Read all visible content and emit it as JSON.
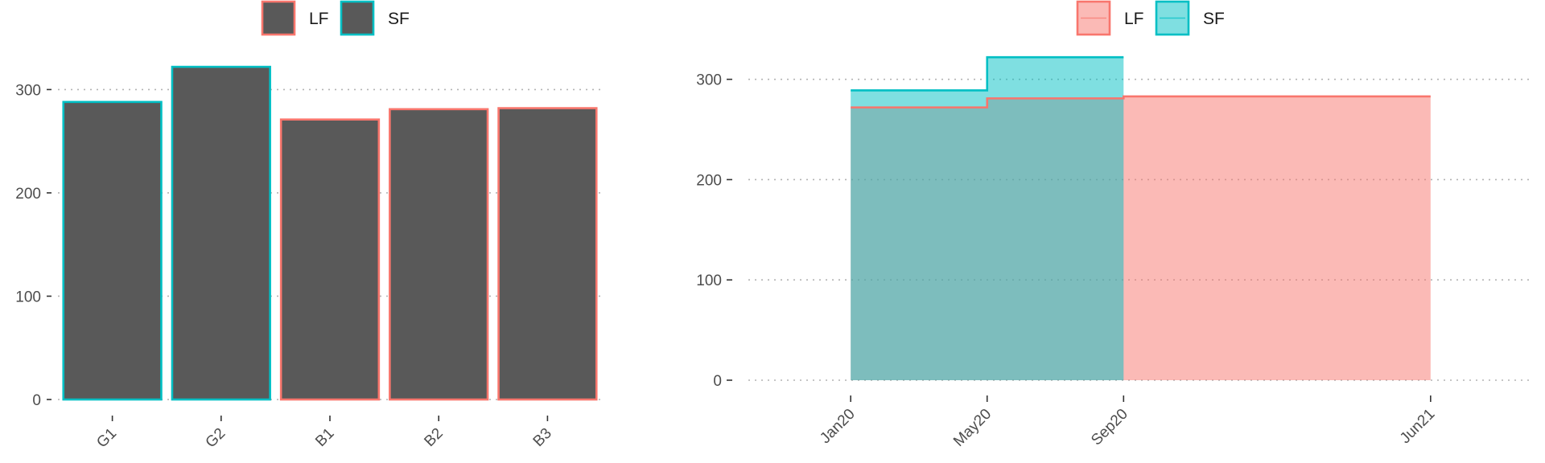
{
  "chart_data": [
    {
      "type": "bar",
      "title": "",
      "xlabel": "",
      "ylabel": "",
      "categories": [
        "G1",
        "G2",
        "B1",
        "B2",
        "B3"
      ],
      "values": [
        288,
        322,
        271,
        281,
        282
      ],
      "outline_group": [
        "SF",
        "SF",
        "LF",
        "LF",
        "LF"
      ],
      "fill_color": "#595959",
      "ylim": [
        0,
        330
      ],
      "yticks": [
        0,
        100,
        200,
        300
      ],
      "grid": "horizontal-dotted",
      "legend": {
        "position": "top",
        "entries": [
          {
            "label": "LF",
            "color": "#f8766d"
          },
          {
            "label": "SF",
            "color": "#00bfc4"
          }
        ]
      }
    },
    {
      "type": "area",
      "step": true,
      "title": "",
      "xlabel": "",
      "ylabel": "",
      "xticks": [
        "Jan20",
        "May20",
        "Sep20",
        "Jun21"
      ],
      "x_range": [
        "2019-10",
        "2021-09"
      ],
      "ylim": [
        0,
        322
      ],
      "yticks": [
        0,
        100,
        200,
        300
      ],
      "grid": "horizontal-dotted",
      "series": [
        {
          "name": "LF",
          "color": "#f8766d",
          "points": [
            {
              "x": "2020-01",
              "y": 272
            },
            {
              "x": "2020-05",
              "y": 281
            },
            {
              "x": "2020-09",
              "y": 283
            },
            {
              "x": "2021-06",
              "y": 283
            }
          ]
        },
        {
          "name": "SF",
          "color": "#00bfc4",
          "points": [
            {
              "x": "2020-01",
              "y": 289
            },
            {
              "x": "2020-05",
              "y": 322
            },
            {
              "x": "2020-09",
              "y": 322
            }
          ]
        }
      ],
      "legend": {
        "position": "top",
        "entries": [
          {
            "label": "LF",
            "color": "#f8766d"
          },
          {
            "label": "SF",
            "color": "#00bfc4"
          }
        ]
      }
    }
  ]
}
